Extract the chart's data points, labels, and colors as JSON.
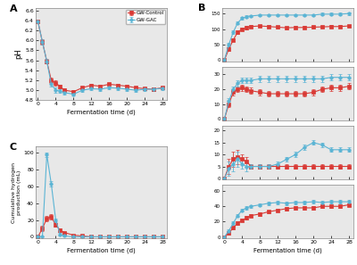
{
  "fermentation_days": [
    0,
    1,
    2,
    3,
    4,
    5,
    6,
    8,
    10,
    12,
    14,
    16,
    18,
    20,
    22,
    24,
    26,
    28
  ],
  "pH_control": [
    6.38,
    5.97,
    5.58,
    5.2,
    5.15,
    5.07,
    5.0,
    4.97,
    5.05,
    5.1,
    5.08,
    5.12,
    5.1,
    5.08,
    5.05,
    5.03,
    5.02,
    5.05
  ],
  "pH_gac": [
    6.38,
    5.97,
    5.58,
    5.12,
    5.0,
    4.98,
    4.95,
    4.92,
    5.0,
    5.03,
    5.02,
    5.05,
    5.04,
    5.02,
    5.0,
    5.02,
    5.02,
    5.04
  ],
  "pH_control_err": [
    0.02,
    0.05,
    0.05,
    0.05,
    0.05,
    0.04,
    0.03,
    0.03,
    0.03,
    0.03,
    0.03,
    0.03,
    0.03,
    0.03,
    0.03,
    0.03,
    0.03,
    0.03
  ],
  "pH_gac_err": [
    0.02,
    0.05,
    0.05,
    0.05,
    0.05,
    0.04,
    0.03,
    0.03,
    0.03,
    0.03,
    0.03,
    0.03,
    0.03,
    0.03,
    0.03,
    0.03,
    0.03,
    0.03
  ],
  "acetate_control": [
    0,
    35,
    65,
    90,
    100,
    105,
    108,
    110,
    108,
    106,
    104,
    105,
    105,
    106,
    107,
    108,
    108,
    110
  ],
  "acetate_gac": [
    0,
    50,
    90,
    120,
    135,
    140,
    142,
    145,
    145,
    145,
    145,
    145,
    145,
    145,
    148,
    148,
    148,
    150
  ],
  "acetate_control_err": [
    0,
    5,
    5,
    5,
    5,
    5,
    4,
    4,
    4,
    4,
    4,
    4,
    4,
    4,
    4,
    4,
    4,
    4
  ],
  "acetate_gac_err": [
    0,
    5,
    5,
    5,
    5,
    5,
    4,
    4,
    4,
    4,
    4,
    4,
    4,
    4,
    4,
    4,
    4,
    4
  ],
  "propionate_control": [
    0,
    10,
    18,
    20,
    21,
    20,
    19,
    18,
    17,
    17,
    17,
    17,
    17,
    18,
    20,
    21,
    21,
    22
  ],
  "propionate_gac": [
    0,
    12,
    20,
    24,
    26,
    26,
    26,
    27,
    27,
    27,
    27,
    27,
    27,
    27,
    27,
    28,
    28,
    28
  ],
  "propionate_control_err": [
    0,
    2,
    2,
    2,
    2,
    2,
    2,
    2,
    2,
    2,
    2,
    2,
    2,
    2,
    2,
    2,
    2,
    2
  ],
  "propionate_gac_err": [
    0,
    2,
    2,
    2,
    2,
    2,
    2,
    2,
    2,
    2,
    2,
    2,
    2,
    2,
    2,
    2,
    2,
    2
  ],
  "isobutyrate_control": [
    0,
    5,
    8,
    9,
    8,
    7,
    5,
    5,
    5,
    5,
    5,
    5,
    5,
    5,
    5,
    5,
    5,
    5
  ],
  "isobutyrate_gac": [
    0,
    4,
    6,
    8,
    6,
    5,
    5,
    5,
    5,
    6,
    8,
    10,
    13,
    15,
    14,
    12,
    12,
    12
  ],
  "isobutyrate_control_err": [
    0,
    3,
    3,
    3,
    2,
    2,
    1,
    1,
    1,
    1,
    1,
    1,
    1,
    1,
    1,
    1,
    1,
    1
  ],
  "isobutyrate_gac_err": [
    0,
    3,
    3,
    3,
    2,
    2,
    1,
    1,
    1,
    1,
    1,
    1,
    1,
    1,
    1,
    1,
    1,
    1
  ],
  "nbutyrate_control": [
    0,
    5,
    12,
    18,
    22,
    25,
    28,
    30,
    33,
    35,
    37,
    38,
    38,
    38,
    40,
    40,
    40,
    42
  ],
  "nbutyrate_gac": [
    0,
    8,
    18,
    28,
    35,
    38,
    40,
    42,
    44,
    45,
    44,
    45,
    45,
    46,
    45,
    46,
    46,
    46
  ],
  "nbutyrate_control_err": [
    0,
    2,
    2,
    2,
    2,
    2,
    2,
    2,
    2,
    2,
    2,
    2,
    2,
    2,
    2,
    2,
    2,
    2
  ],
  "nbutyrate_gac_err": [
    0,
    2,
    2,
    2,
    2,
    2,
    2,
    2,
    2,
    2,
    2,
    2,
    2,
    2,
    2,
    2,
    2,
    2
  ],
  "H2_control": [
    0,
    10,
    22,
    24,
    14,
    8,
    5,
    2,
    1,
    0,
    0,
    0,
    0,
    0,
    0,
    0,
    0,
    0
  ],
  "H2_gac": [
    0,
    0,
    98,
    63,
    20,
    3,
    1,
    0,
    0,
    0,
    0,
    0,
    0,
    0,
    0,
    0,
    0,
    0
  ],
  "H2_control_err": [
    0,
    3,
    3,
    3,
    2,
    2,
    1,
    1,
    1,
    0,
    0,
    0,
    0,
    0,
    0,
    0,
    0,
    0
  ],
  "H2_gac_err": [
    0,
    0,
    3,
    3,
    2,
    2,
    1,
    0,
    0,
    0,
    0,
    0,
    0,
    0,
    0,
    0,
    0,
    0
  ],
  "color_control": "#d93a35",
  "color_gac": "#5ab4d4",
  "marker_control": "s",
  "marker_gac": "o",
  "panel_bg": "#e8e8e8"
}
